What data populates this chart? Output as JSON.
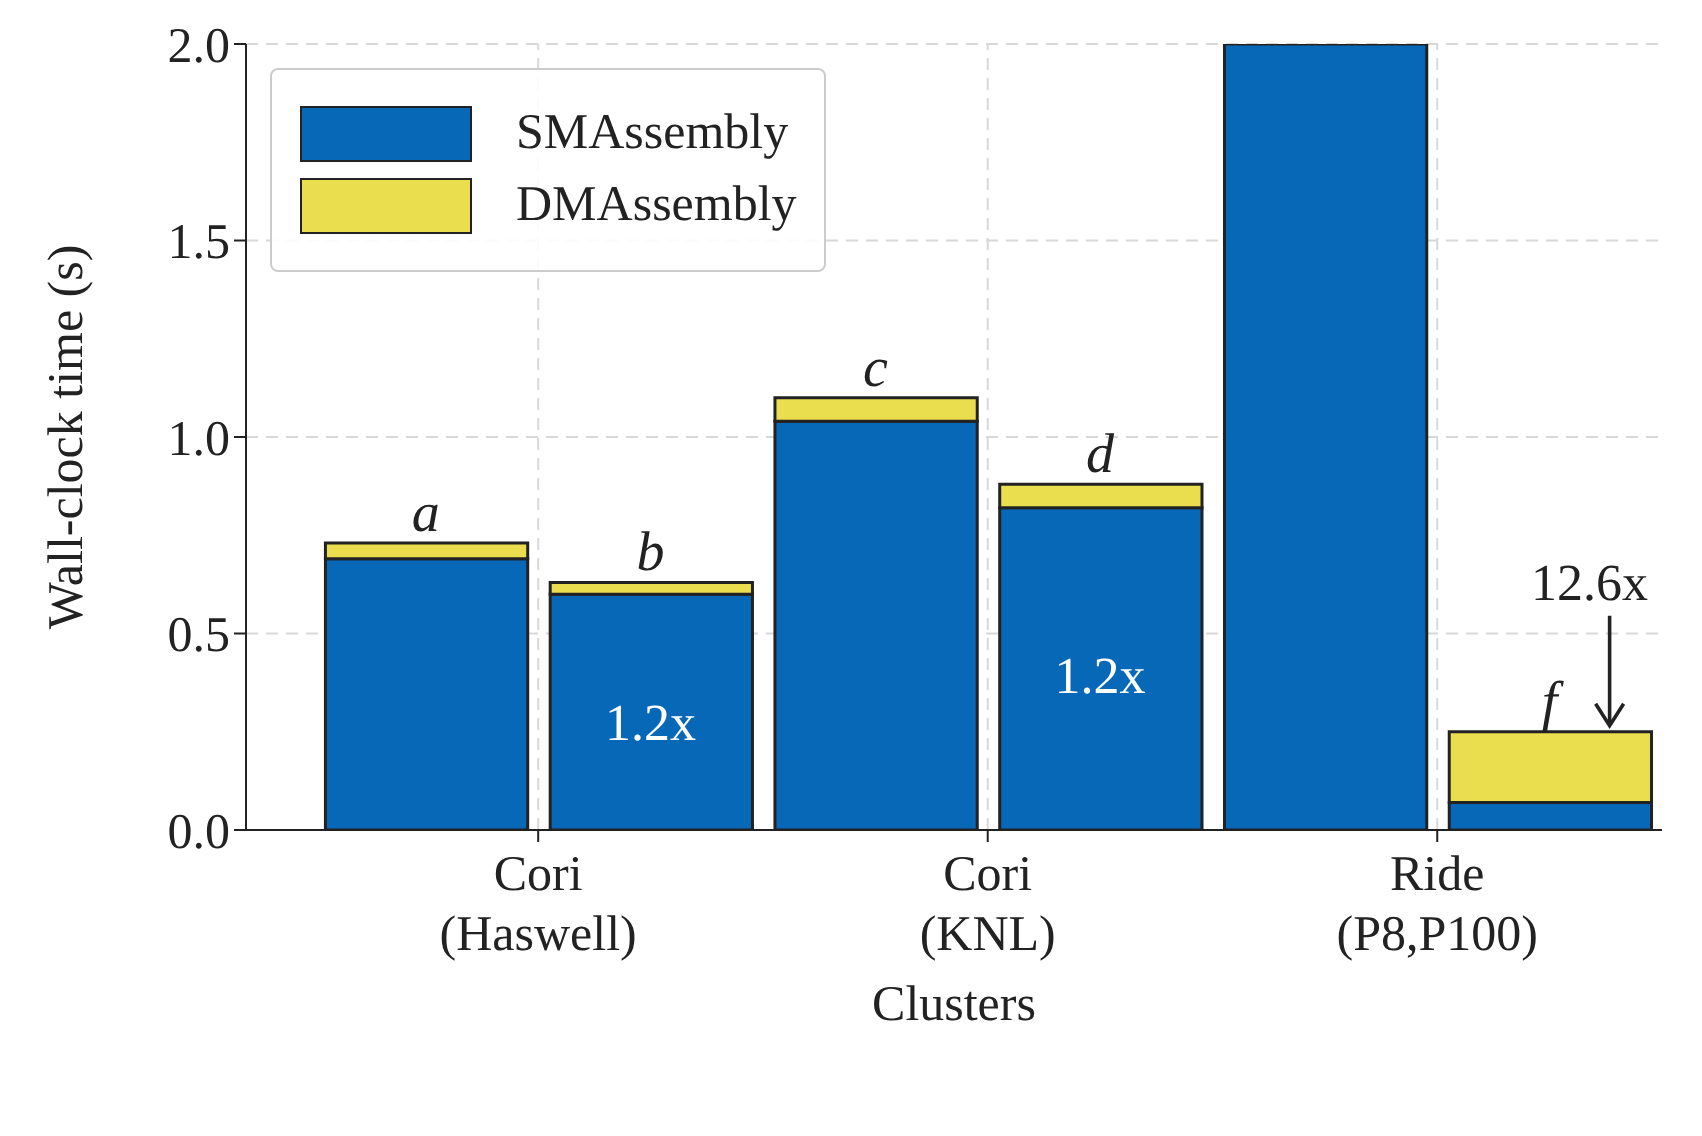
{
  "chart_data": {
    "type": "bar",
    "stacked": true,
    "xlabel": "Clusters",
    "ylabel": "Wall-clock time (s)",
    "categories": [
      "Cori\n(Haswell)",
      null,
      "Cori\n(KNL)",
      null,
      "Ride\n(P8,P100)",
      null
    ],
    "ylim": [
      0,
      2
    ],
    "yticks": [
      {
        "value": 0,
        "label": "0.0"
      },
      {
        "value": 0.5,
        "label": "0.5"
      },
      {
        "value": 1,
        "label": "1.0"
      },
      {
        "value": 1.5,
        "label": "1.5"
      },
      {
        "value": 2,
        "label": "2.0"
      }
    ],
    "series": [
      {
        "name": "SMAssembly",
        "color": "#0868b8",
        "values": [
          0.69,
          0.6,
          1.04,
          0.82,
          2.0,
          0.07
        ]
      },
      {
        "name": "DMAssembly",
        "color": "#eadd4e",
        "values": [
          0.04,
          0.03,
          0.06,
          0.06,
          0,
          0.18
        ]
      }
    ],
    "annotations": [
      "a",
      "b",
      "c",
      "d",
      "f",
      "1.2x",
      "1.2x",
      {
        "text": "12.6x",
        "y": 0.25
      }
    ],
    "grid": true,
    "legend": "top left"
  }
}
